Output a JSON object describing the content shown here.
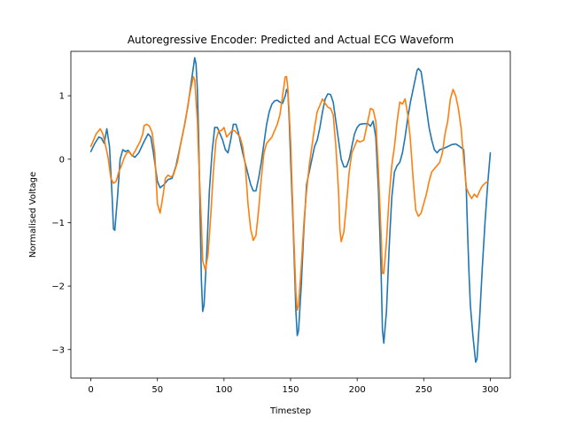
{
  "chart_data": {
    "type": "line",
    "title": "Autoregressive Encoder: Predicted and Actual ECG Waveform",
    "xlabel": "Timestep",
    "ylabel": "Normalised Voltage",
    "xlim": [
      -15,
      315
    ],
    "ylim": [
      -3.45,
      1.7
    ],
    "x_ticks": [
      0,
      50,
      100,
      150,
      200,
      250,
      300
    ],
    "x_tick_labels": [
      "0",
      "50",
      "100",
      "150",
      "200",
      "250",
      "300"
    ],
    "y_ticks": [
      -3,
      -2,
      -1,
      0,
      1
    ],
    "y_tick_labels": [
      "−3",
      "−2",
      "−1",
      "0",
      "1"
    ],
    "grid": false,
    "legend": "none",
    "series": [
      {
        "color": "#1f77b4",
        "points": [
          [
            0,
            0.12
          ],
          [
            3,
            0.25
          ],
          [
            6,
            0.35
          ],
          [
            8,
            0.33
          ],
          [
            10,
            0.25
          ],
          [
            12,
            0.48
          ],
          [
            14,
            0.2
          ],
          [
            16,
            -0.6
          ],
          [
            17,
            -1.1
          ],
          [
            18,
            -1.12
          ],
          [
            20,
            -0.6
          ],
          [
            22,
            0.0
          ],
          [
            24,
            0.15
          ],
          [
            26,
            0.12
          ],
          [
            28,
            0.14
          ],
          [
            30,
            0.08
          ],
          [
            33,
            0.03
          ],
          [
            36,
            0.1
          ],
          [
            40,
            0.28
          ],
          [
            43,
            0.4
          ],
          [
            45,
            0.35
          ],
          [
            47,
            0.1
          ],
          [
            50,
            -0.35
          ],
          [
            52,
            -0.45
          ],
          [
            55,
            -0.4
          ],
          [
            58,
            -0.32
          ],
          [
            61,
            -0.3
          ],
          [
            64,
            -0.1
          ],
          [
            67,
            0.2
          ],
          [
            70,
            0.5
          ],
          [
            73,
            0.85
          ],
          [
            76,
            1.3
          ],
          [
            78,
            1.6
          ],
          [
            79,
            1.5
          ],
          [
            80,
            1.1
          ],
          [
            81,
            0.3
          ],
          [
            82,
            -0.8
          ],
          [
            83,
            -1.9
          ],
          [
            84,
            -2.4
          ],
          [
            85,
            -2.3
          ],
          [
            87,
            -1.5
          ],
          [
            89,
            -0.5
          ],
          [
            91,
            0.1
          ],
          [
            93,
            0.5
          ],
          [
            95,
            0.5
          ],
          [
            97,
            0.4
          ],
          [
            99,
            0.3
          ],
          [
            101,
            0.15
          ],
          [
            103,
            0.1
          ],
          [
            105,
            0.3
          ],
          [
            107,
            0.55
          ],
          [
            109,
            0.55
          ],
          [
            111,
            0.4
          ],
          [
            114,
            0.1
          ],
          [
            117,
            -0.15
          ],
          [
            120,
            -0.4
          ],
          [
            122,
            -0.5
          ],
          [
            124,
            -0.5
          ],
          [
            126,
            -0.3
          ],
          [
            128,
            -0.05
          ],
          [
            130,
            0.25
          ],
          [
            132,
            0.55
          ],
          [
            134,
            0.75
          ],
          [
            136,
            0.87
          ],
          [
            138,
            0.92
          ],
          [
            140,
            0.93
          ],
          [
            142,
            0.9
          ],
          [
            144,
            0.88
          ],
          [
            146,
            1.0
          ],
          [
            147,
            1.1
          ],
          [
            148,
            1.05
          ],
          [
            149,
            0.6
          ],
          [
            150,
            0.0
          ],
          [
            152,
            -1.1
          ],
          [
            154,
            -2.4
          ],
          [
            155,
            -2.78
          ],
          [
            156,
            -2.7
          ],
          [
            158,
            -2.0
          ],
          [
            160,
            -1.1
          ],
          [
            162,
            -0.4
          ],
          [
            164,
            -0.2
          ],
          [
            166,
            0.0
          ],
          [
            168,
            0.2
          ],
          [
            170,
            0.3
          ],
          [
            172,
            0.5
          ],
          [
            174,
            0.75
          ],
          [
            176,
            0.95
          ],
          [
            178,
            1.03
          ],
          [
            180,
            1.02
          ],
          [
            182,
            0.9
          ],
          [
            184,
            0.6
          ],
          [
            186,
            0.3
          ],
          [
            188,
            0.0
          ],
          [
            190,
            -0.12
          ],
          [
            192,
            -0.12
          ],
          [
            194,
            0.0
          ],
          [
            196,
            0.2
          ],
          [
            198,
            0.4
          ],
          [
            200,
            0.5
          ],
          [
            202,
            0.55
          ],
          [
            205,
            0.56
          ],
          [
            208,
            0.56
          ],
          [
            210,
            0.52
          ],
          [
            212,
            0.6
          ],
          [
            214,
            0.35
          ],
          [
            216,
            -0.5
          ],
          [
            218,
            -1.8
          ],
          [
            219,
            -2.7
          ],
          [
            220,
            -2.9
          ],
          [
            222,
            -2.4
          ],
          [
            224,
            -1.4
          ],
          [
            226,
            -0.6
          ],
          [
            228,
            -0.2
          ],
          [
            230,
            -0.1
          ],
          [
            232,
            -0.05
          ],
          [
            234,
            0.1
          ],
          [
            236,
            0.35
          ],
          [
            238,
            0.65
          ],
          [
            240,
            0.9
          ],
          [
            242,
            1.1
          ],
          [
            244,
            1.3
          ],
          [
            245,
            1.4
          ],
          [
            246,
            1.43
          ],
          [
            248,
            1.38
          ],
          [
            250,
            1.1
          ],
          [
            252,
            0.8
          ],
          [
            254,
            0.5
          ],
          [
            256,
            0.3
          ],
          [
            258,
            0.15
          ],
          [
            260,
            0.1
          ],
          [
            262,
            0.15
          ],
          [
            265,
            0.17
          ],
          [
            268,
            0.2
          ],
          [
            271,
            0.23
          ],
          [
            274,
            0.24
          ],
          [
            277,
            0.2
          ],
          [
            280,
            0.15
          ],
          [
            282,
            -0.5
          ],
          [
            283,
            -1.2
          ],
          [
            284,
            -1.8
          ],
          [
            285,
            -2.3
          ],
          [
            287,
            -2.8
          ],
          [
            289,
            -3.2
          ],
          [
            290,
            -3.15
          ],
          [
            292,
            -2.5
          ],
          [
            294,
            -1.7
          ],
          [
            296,
            -1.0
          ],
          [
            298,
            -0.4
          ],
          [
            300,
            0.1
          ]
        ]
      },
      {
        "color": "#ff7f0e",
        "points": [
          [
            0,
            0.2
          ],
          [
            2,
            0.3
          ],
          [
            4,
            0.4
          ],
          [
            6,
            0.45
          ],
          [
            7,
            0.48
          ],
          [
            9,
            0.4
          ],
          [
            11,
            0.22
          ],
          [
            13,
            0.02
          ],
          [
            15,
            -0.3
          ],
          [
            17,
            -0.38
          ],
          [
            19,
            -0.35
          ],
          [
            21,
            -0.2
          ],
          [
            23,
            -0.1
          ],
          [
            25,
            0.02
          ],
          [
            27,
            0.1
          ],
          [
            29,
            0.12
          ],
          [
            31,
            0.05
          ],
          [
            33,
            0.12
          ],
          [
            35,
            0.2
          ],
          [
            37,
            0.28
          ],
          [
            39,
            0.4
          ],
          [
            40,
            0.53
          ],
          [
            42,
            0.55
          ],
          [
            44,
            0.52
          ],
          [
            46,
            0.42
          ],
          [
            48,
            0.1
          ],
          [
            49,
            -0.3
          ],
          [
            50,
            -0.7
          ],
          [
            52,
            -0.85
          ],
          [
            54,
            -0.6
          ],
          [
            56,
            -0.3
          ],
          [
            58,
            -0.25
          ],
          [
            60,
            -0.28
          ],
          [
            62,
            -0.25
          ],
          [
            65,
            -0.05
          ],
          [
            68,
            0.3
          ],
          [
            71,
            0.6
          ],
          [
            74,
            1.0
          ],
          [
            76,
            1.2
          ],
          [
            77,
            1.3
          ],
          [
            78,
            1.25
          ],
          [
            80,
            0.6
          ],
          [
            81,
            0.0
          ],
          [
            83,
            -1.0
          ],
          [
            84,
            -1.6
          ],
          [
            86,
            -1.75
          ],
          [
            88,
            -1.5
          ],
          [
            90,
            -0.9
          ],
          [
            92,
            -0.2
          ],
          [
            94,
            0.3
          ],
          [
            96,
            0.45
          ],
          [
            98,
            0.45
          ],
          [
            100,
            0.5
          ],
          [
            102,
            0.35
          ],
          [
            104,
            0.4
          ],
          [
            106,
            0.45
          ],
          [
            108,
            0.45
          ],
          [
            110,
            0.4
          ],
          [
            112,
            0.35
          ],
          [
            114,
            0.2
          ],
          [
            116,
            -0.1
          ],
          [
            118,
            -0.7
          ],
          [
            120,
            -1.1
          ],
          [
            122,
            -1.28
          ],
          [
            124,
            -1.2
          ],
          [
            126,
            -0.8
          ],
          [
            128,
            -0.3
          ],
          [
            130,
            0.1
          ],
          [
            132,
            0.25
          ],
          [
            134,
            0.3
          ],
          [
            136,
            0.35
          ],
          [
            138,
            0.45
          ],
          [
            140,
            0.55
          ],
          [
            142,
            0.7
          ],
          [
            144,
            1.0
          ],
          [
            146,
            1.3
          ],
          [
            147,
            1.3
          ],
          [
            148,
            1.1
          ],
          [
            150,
            0.3
          ],
          [
            152,
            -1.0
          ],
          [
            154,
            -2.1
          ],
          [
            155,
            -2.38
          ],
          [
            156,
            -2.3
          ],
          [
            158,
            -1.7
          ],
          [
            160,
            -1.0
          ],
          [
            162,
            -0.5
          ],
          [
            164,
            -0.1
          ],
          [
            166,
            0.2
          ],
          [
            168,
            0.5
          ],
          [
            170,
            0.75
          ],
          [
            172,
            0.85
          ],
          [
            174,
            0.95
          ],
          [
            176,
            0.88
          ],
          [
            178,
            0.82
          ],
          [
            180,
            0.8
          ],
          [
            182,
            0.7
          ],
          [
            184,
            0.2
          ],
          [
            186,
            -0.5
          ],
          [
            187,
            -1.1
          ],
          [
            188,
            -1.3
          ],
          [
            190,
            -1.15
          ],
          [
            192,
            -0.7
          ],
          [
            194,
            -0.2
          ],
          [
            196,
            0.1
          ],
          [
            198,
            0.2
          ],
          [
            200,
            0.3
          ],
          [
            202,
            0.27
          ],
          [
            205,
            0.3
          ],
          [
            208,
            0.6
          ],
          [
            210,
            0.8
          ],
          [
            212,
            0.78
          ],
          [
            214,
            0.6
          ],
          [
            216,
            -0.2
          ],
          [
            218,
            -1.2
          ],
          [
            219,
            -1.8
          ],
          [
            220,
            -1.8
          ],
          [
            222,
            -1.3
          ],
          [
            224,
            -0.6
          ],
          [
            226,
            -0.1
          ],
          [
            228,
            0.2
          ],
          [
            230,
            0.6
          ],
          [
            232,
            0.9
          ],
          [
            234,
            0.87
          ],
          [
            236,
            0.95
          ],
          [
            238,
            0.7
          ],
          [
            240,
            0.3
          ],
          [
            242,
            -0.3
          ],
          [
            244,
            -0.8
          ],
          [
            246,
            -0.9
          ],
          [
            248,
            -0.85
          ],
          [
            250,
            -0.7
          ],
          [
            252,
            -0.55
          ],
          [
            254,
            -0.35
          ],
          [
            256,
            -0.2
          ],
          [
            258,
            -0.15
          ],
          [
            260,
            -0.1
          ],
          [
            262,
            -0.05
          ],
          [
            264,
            0.1
          ],
          [
            266,
            0.4
          ],
          [
            268,
            0.6
          ],
          [
            270,
            0.95
          ],
          [
            272,
            1.1
          ],
          [
            274,
            1.0
          ],
          [
            276,
            0.8
          ],
          [
            278,
            0.5
          ],
          [
            280,
            0.0
          ],
          [
            282,
            -0.45
          ],
          [
            284,
            -0.55
          ],
          [
            286,
            -0.62
          ],
          [
            288,
            -0.55
          ],
          [
            290,
            -0.6
          ],
          [
            292,
            -0.5
          ],
          [
            294,
            -0.42
          ],
          [
            296,
            -0.38
          ],
          [
            298,
            -0.35
          ]
        ]
      }
    ]
  }
}
